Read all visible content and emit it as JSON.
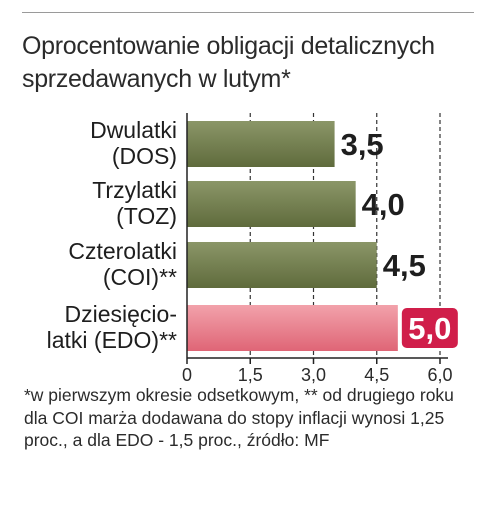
{
  "title": "Oprocentowanie obligacji detalicznych sprzedawanych w lutym*",
  "footnote": "*w pierwszym okresie odsetkowym, ** od drugiego roku dla COI marża dodawana do stopy inflacji wynosi 1,25 proc., a dla EDO - 1,5 proc., źródło: MF",
  "colors": {
    "bar_default_top": "#8b9668",
    "bar_default_bottom": "#5f6b3c",
    "bar_highlight_top": "#f2a2ab",
    "bar_highlight_bottom": "#df6576",
    "highlight_badge": "#d01e4a",
    "label_text": "#1e1e1e"
  },
  "chart_data": {
    "type": "bar",
    "orientation": "horizontal",
    "categories": [
      [
        "Dwulatki",
        "(DOS)"
      ],
      [
        "Trzylatki",
        "(TOZ)"
      ],
      [
        "Czterolatki",
        "(COI)**"
      ],
      [
        "Dziesięcio-",
        "latki (EDO)**"
      ]
    ],
    "values": [
      3.5,
      4.0,
      4.5,
      5.0
    ],
    "value_labels": [
      "3,5",
      "4,0",
      "4,5",
      "5,0"
    ],
    "highlight_index": 3,
    "xlim": [
      0,
      6.0
    ],
    "xticks": [
      0,
      1.5,
      3.0,
      4.5,
      6.0
    ],
    "xtick_labels": [
      "0",
      "1,5",
      "3,0",
      "4,5",
      "6,0"
    ],
    "grid": "vertical-dashed",
    "title": "Oprocentowanie obligacji detalicznych sprzedawanych w lutym*",
    "xlabel": "",
    "ylabel": ""
  }
}
